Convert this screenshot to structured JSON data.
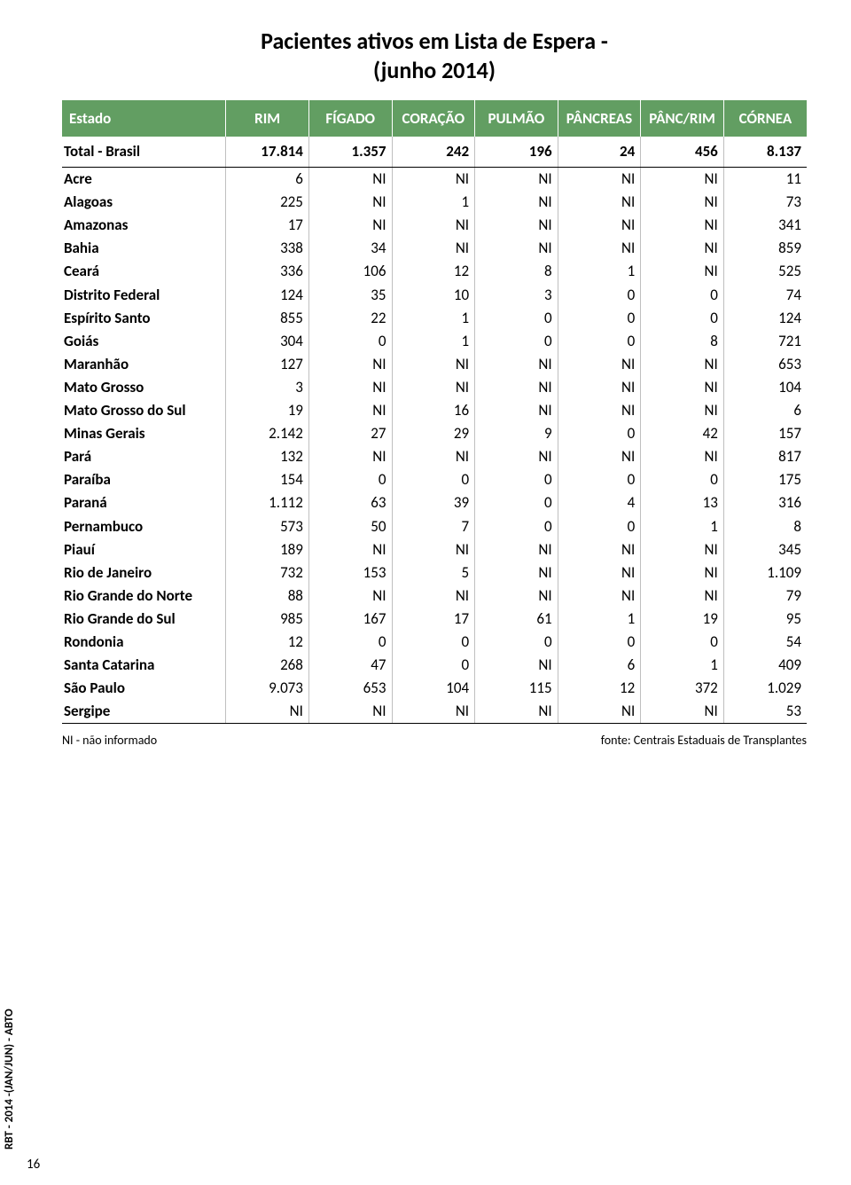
{
  "title_line1": "Pacientes ativos em Lista de Espera -",
  "title_line2": "(junho 2014)",
  "columns": [
    "Estado",
    "RIM",
    "FÍGADO",
    "CORAÇÃO",
    "PULMÃO",
    "PÂNCREAS",
    "PÂNC/RIM",
    "CÓRNEA"
  ],
  "total_row": [
    "Total - Brasil",
    "17.814",
    "1.357",
    "242",
    "196",
    "24",
    "456",
    "8.137"
  ],
  "rows": [
    [
      "Acre",
      "6",
      "NI",
      "NI",
      "NI",
      "NI",
      "NI",
      "11"
    ],
    [
      "Alagoas",
      "225",
      "NI",
      "1",
      "NI",
      "NI",
      "NI",
      "73"
    ],
    [
      "Amazonas",
      "17",
      "NI",
      "NI",
      "NI",
      "NI",
      "NI",
      "341"
    ],
    [
      "Bahia",
      "338",
      "34",
      "NI",
      "NI",
      "NI",
      "NI",
      "859"
    ],
    [
      "Ceará",
      "336",
      "106",
      "12",
      "8",
      "1",
      "NI",
      "525"
    ],
    [
      "Distrito Federal",
      "124",
      "35",
      "10",
      "3",
      "0",
      "0",
      "74"
    ],
    [
      "Espírito Santo",
      "855",
      "22",
      "1",
      "0",
      "0",
      "0",
      "124"
    ],
    [
      "Goiás",
      "304",
      "0",
      "1",
      "0",
      "0",
      "8",
      "721"
    ],
    [
      "Maranhão",
      "127",
      "NI",
      "NI",
      "NI",
      "NI",
      "NI",
      "653"
    ],
    [
      "Mato Grosso",
      "3",
      "NI",
      "NI",
      "NI",
      "NI",
      "NI",
      "104"
    ],
    [
      "Mato Grosso do Sul",
      "19",
      "NI",
      "16",
      "NI",
      "NI",
      "NI",
      "6"
    ],
    [
      "Minas Gerais",
      "2.142",
      "27",
      "29",
      "9",
      "0",
      "42",
      "157"
    ],
    [
      "Pará",
      "132",
      "NI",
      "NI",
      "NI",
      "NI",
      "NI",
      "817"
    ],
    [
      "Paraíba",
      "154",
      "0",
      "0",
      "0",
      "0",
      "0",
      "175"
    ],
    [
      "Paraná",
      "1.112",
      "63",
      "39",
      "0",
      "4",
      "13",
      "316"
    ],
    [
      "Pernambuco",
      "573",
      "50",
      "7",
      "0",
      "0",
      "1",
      "8"
    ],
    [
      "Piauí",
      "189",
      "NI",
      "NI",
      "NI",
      "NI",
      "NI",
      "345"
    ],
    [
      "Rio de Janeiro",
      "732",
      "153",
      "5",
      "NI",
      "NI",
      "NI",
      "1.109"
    ],
    [
      "Rio Grande do Norte",
      "88",
      "NI",
      "NI",
      "NI",
      "NI",
      "NI",
      "79"
    ],
    [
      "Rio Grande do Sul",
      "985",
      "167",
      "17",
      "61",
      "1",
      "19",
      "95"
    ],
    [
      "Rondonia",
      "12",
      "0",
      "0",
      "0",
      "0",
      "0",
      "54"
    ],
    [
      "Santa Catarina",
      "268",
      "47",
      "0",
      "NI",
      "6",
      "1",
      "409"
    ],
    [
      "São Paulo",
      "9.073",
      "653",
      "104",
      "115",
      "12",
      "372",
      "1.029"
    ],
    [
      "Sergipe",
      "NI",
      "NI",
      "NI",
      "NI",
      "NI",
      "NI",
      "53"
    ]
  ],
  "footnote_left": "NI - não informado",
  "footnote_right": "fonte: Centrais Estaduais de Transplantes",
  "side_label": "RBT - 2014 -(JAN/JUN) - ABTO",
  "page_number": "16",
  "colors": {
    "header_bg": "#629e62",
    "header_text": "#ffffff",
    "cell_border": "#bfbfbf",
    "text": "#000000"
  }
}
